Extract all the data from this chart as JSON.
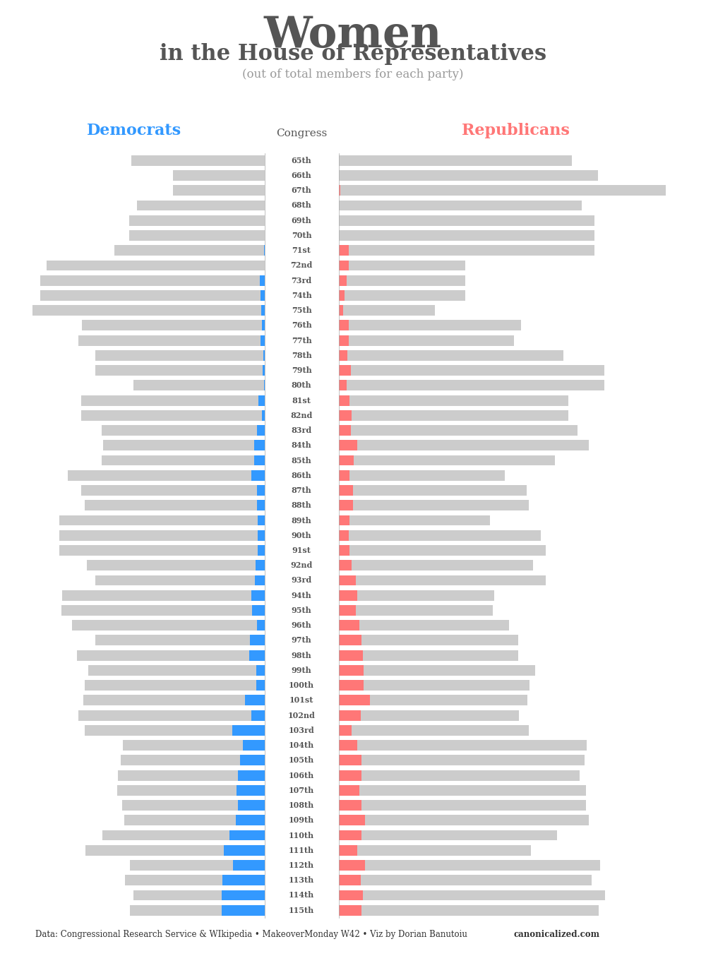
{
  "congress_labels": [
    "65th",
    "66th",
    "67th",
    "68th",
    "69th",
    "70th",
    "71st",
    "72nd",
    "73rd",
    "74th",
    "75th",
    "76th",
    "77th",
    "78th",
    "79th",
    "80th",
    "81st",
    "82nd",
    "83rd",
    "84th",
    "85th",
    "86th",
    "87th",
    "88th",
    "89th",
    "90th",
    "91st",
    "92nd",
    "93rd",
    "94th",
    "95th",
    "96th",
    "97th",
    "98th",
    "99th",
    "100th",
    "101st",
    "102nd",
    "103rd",
    "104th",
    "105th",
    "106th",
    "107th",
    "108th",
    "109th",
    "110th",
    "111th",
    "112th",
    "113th",
    "114th",
    "115th"
  ],
  "dem_total": [
    191,
    132,
    132,
    183,
    195,
    195,
    216,
    313,
    322,
    322,
    333,
    262,
    267,
    243,
    243,
    188,
    263,
    263,
    234,
    232,
    234,
    283,
    263,
    258,
    295,
    295,
    295,
    255,
    243,
    291,
    292,
    277,
    243,
    269,
    253,
    258,
    260,
    267,
    258,
    204,
    207,
    211,
    212,
    205,
    202,
    233,
    257,
    193,
    201,
    188,
    194
  ],
  "rep_total": [
    216,
    240,
    303,
    225,
    237,
    237,
    237,
    117,
    117,
    117,
    89,
    169,
    162,
    208,
    246,
    246,
    213,
    213,
    221,
    232,
    200,
    154,
    174,
    176,
    140,
    187,
    192,
    180,
    192,
    144,
    143,
    158,
    166,
    166,
    182,
    177,
    175,
    167,
    176,
    230,
    228,
    223,
    229,
    229,
    232,
    202,
    178,
    242,
    234,
    247,
    241
  ],
  "dem_women": [
    0,
    0,
    0,
    0,
    0,
    0,
    1,
    0,
    7,
    6,
    5,
    4,
    6,
    2,
    3,
    1,
    9,
    4,
    11,
    15,
    15,
    19,
    11,
    11,
    10,
    10,
    10,
    13,
    14,
    19,
    18,
    11,
    21,
    22,
    12,
    12,
    28,
    19,
    47,
    31,
    35,
    39,
    41,
    38,
    42,
    51,
    59,
    46,
    61,
    62,
    62
  ],
  "rep_women": [
    0,
    0,
    1,
    0,
    0,
    0,
    9,
    9,
    7,
    5,
    4,
    9,
    9,
    8,
    11,
    7,
    10,
    12,
    11,
    17,
    14,
    10,
    13,
    13,
    10,
    9,
    10,
    12,
    16,
    17,
    16,
    19,
    21,
    22,
    23,
    23,
    29,
    20,
    12,
    17,
    21,
    21,
    19,
    21,
    24,
    21,
    17,
    24,
    20,
    22,
    21
  ],
  "bg_color": "#ffffff",
  "dem_color": "#3399ff",
  "rep_color": "#ff7777",
  "gray_color": "#cccccc",
  "dem_label_color": "#3399ff",
  "rep_label_color": "#ff7777",
  "congress_label_color": "#555555",
  "title1": "Women",
  "title2": "in the House of Representatives",
  "title3": "(out of total members for each party)",
  "label_dem": "Democrats",
  "label_rep": "Republicans",
  "label_congress": "Congress",
  "footer": "Data: Congressional Research Service & WIkipedia • MakeoverMonday W42 • Viz by Dorian Banutoiu",
  "footer_bold": "canonicalized.com",
  "max_seats": 333
}
